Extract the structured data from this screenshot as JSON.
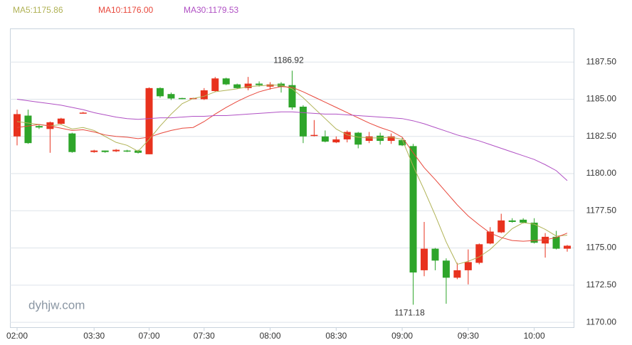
{
  "chart_data": {
    "type": "candlestick",
    "watermark": "dyhjw.com",
    "categories": [
      "02:00",
      null,
      null,
      null,
      null,
      null,
      null,
      "03:30",
      null,
      null,
      null,
      null,
      "07:00",
      null,
      null,
      null,
      null,
      "07:30",
      null,
      null,
      null,
      null,
      null,
      "08:00",
      null,
      null,
      null,
      null,
      null,
      "08:30",
      null,
      null,
      null,
      null,
      null,
      "09:00",
      null,
      null,
      null,
      null,
      null,
      "09:30",
      null,
      null,
      null,
      null,
      null,
      "10:00",
      null,
      null,
      null
    ],
    "open": [
      1182.5,
      1183.9,
      1183.2,
      1183.0,
      1183.35,
      1182.7,
      1184.1,
      1181.45,
      1181.55,
      1181.5,
      1181.55,
      1181.55,
      1181.3,
      1185.75,
      1185.35,
      1185.08,
      1185.03,
      1185.0,
      1185.55,
      1186.4,
      1186.0,
      1185.75,
      1186.05,
      1185.85,
      1186.05,
      1185.95,
      1184.5,
      1182.55,
      1182.5,
      1182.1,
      1182.3,
      1182.75,
      1182.2,
      1182.55,
      1182.2,
      1182.25,
      1181.85,
      1173.5,
      1174.95,
      1174.15,
      1173.0,
      1173.5,
      1174.0,
      1175.3,
      1176.05,
      1176.85,
      1176.9,
      1176.7,
      1175.3,
      1175.75,
      1174.95
    ],
    "high": [
      1184.3,
      1184.3,
      1183.3,
      1183.5,
      1183.75,
      1182.75,
      1184.15,
      1181.6,
      1181.55,
      1181.65,
      1181.6,
      1181.6,
      1185.8,
      1185.8,
      1185.45,
      1185.1,
      1185.1,
      1185.75,
      1186.5,
      1186.45,
      1186.05,
      1186.5,
      1186.2,
      1186.15,
      1186.15,
      1186.92,
      1184.6,
      1183.6,
      1182.9,
      1182.5,
      1182.9,
      1182.8,
      1182.8,
      1182.75,
      1182.7,
      1182.4,
      1182.0,
      1176.75,
      1175.0,
      1174.3,
      1174.0,
      1174.9,
      1175.3,
      1176.4,
      1177.3,
      1177.0,
      1177.0,
      1177.0,
      1176.0,
      1176.15,
      1175.2
    ],
    "low": [
      1181.9,
      1182.0,
      1183.0,
      1181.4,
      1183.3,
      1181.4,
      1184.05,
      1181.4,
      1181.4,
      1181.45,
      1181.45,
      1181.35,
      1181.3,
      1185.1,
      1184.95,
      1185.0,
      1185.0,
      1184.95,
      1185.5,
      1185.95,
      1185.7,
      1185.6,
      1185.85,
      1185.65,
      1185.45,
      1184.3,
      1182.05,
      1182.5,
      1182.1,
      1182.05,
      1182.1,
      1181.7,
      1182.05,
      1181.95,
      1182.0,
      1181.85,
      1171.18,
      1173.1,
      1173.5,
      1171.25,
      1172.9,
      1172.55,
      1173.9,
      1175.25,
      1176.0,
      1176.7,
      1176.65,
      1175.3,
      1174.35,
      1174.9,
      1174.75
    ],
    "close": [
      1184.0,
      1182.05,
      1183.1,
      1183.45,
      1183.7,
      1181.45,
      1184.1,
      1181.55,
      1181.45,
      1181.6,
      1181.5,
      1181.4,
      1185.75,
      1185.2,
      1185.05,
      1185.03,
      1185.08,
      1185.6,
      1186.4,
      1186.0,
      1185.75,
      1186.05,
      1185.95,
      1186.0,
      1185.85,
      1184.45,
      1182.5,
      1182.6,
      1182.15,
      1182.3,
      1182.8,
      1181.95,
      1182.5,
      1182.2,
      1182.5,
      1181.9,
      1173.35,
      1174.95,
      1174.15,
      1173.0,
      1173.5,
      1174.05,
      1175.25,
      1176.1,
      1176.85,
      1176.75,
      1176.7,
      1175.35,
      1175.75,
      1174.95,
      1175.15
    ],
    "up_color": "#e8321e",
    "down_color": "#2ea52a",
    "annotations": [
      1186.92,
      1171.18
    ],
    "series": [
      {
        "name": "MA5:1175.86",
        "color": "#b0b255",
        "values": [
          1183.5,
          1183.4,
          1183.3,
          1183.2,
          1183.3,
          1183.0,
          1183.1,
          1182.9,
          1182.5,
          1182.1,
          1181.9,
          1181.5,
          1182.3,
          1183.2,
          1184.0,
          1184.7,
          1185.05,
          1185.2,
          1185.5,
          1185.6,
          1185.7,
          1185.85,
          1185.9,
          1185.95,
          1185.95,
          1185.7,
          1185.1,
          1184.4,
          1183.7,
          1183.0,
          1182.6,
          1182.45,
          1182.4,
          1182.4,
          1182.45,
          1182.3,
          1180.5,
          1178.9,
          1177.2,
          1175.4,
          1173.9,
          1174.1,
          1174.4,
          1174.9,
          1175.6,
          1176.3,
          1176.7,
          1176.6,
          1176.25,
          1175.8,
          1175.86
        ]
      },
      {
        "name": "MA10:1176.00",
        "color": "#e8473b",
        "values": [
          1183.1,
          1183.2,
          1183.3,
          1183.2,
          1183.05,
          1182.9,
          1182.95,
          1182.8,
          1182.6,
          1182.5,
          1182.45,
          1182.35,
          1182.45,
          1182.7,
          1182.9,
          1183.05,
          1183.1,
          1183.5,
          1184.0,
          1184.45,
          1184.85,
          1185.2,
          1185.5,
          1185.7,
          1185.85,
          1185.8,
          1185.5,
          1185.15,
          1184.8,
          1184.45,
          1184.1,
          1183.75,
          1183.4,
          1183.1,
          1182.85,
          1182.45,
          1181.4,
          1180.4,
          1179.6,
          1178.75,
          1177.9,
          1177.15,
          1176.55,
          1176.0,
          1175.7,
          1175.5,
          1175.45,
          1175.5,
          1175.55,
          1175.7,
          1176.0
        ]
      },
      {
        "name": "MA30:1179.53",
        "color": "#b050c4",
        "values": [
          1185.0,
          1184.9,
          1184.8,
          1184.7,
          1184.6,
          1184.45,
          1184.3,
          1184.1,
          1183.95,
          1183.8,
          1183.7,
          1183.65,
          1183.7,
          1183.75,
          1183.75,
          1183.8,
          1183.85,
          1183.85,
          1183.9,
          1183.9,
          1183.95,
          1184.0,
          1184.05,
          1184.1,
          1184.15,
          1184.15,
          1184.1,
          1184.05,
          1184.0,
          1184.0,
          1183.95,
          1183.9,
          1183.85,
          1183.8,
          1183.75,
          1183.7,
          1183.55,
          1183.35,
          1183.1,
          1182.85,
          1182.6,
          1182.4,
          1182.2,
          1181.95,
          1181.7,
          1181.45,
          1181.2,
          1180.95,
          1180.6,
          1180.2,
          1179.53
        ]
      }
    ],
    "ylim": [
      1169.67,
      1189.76
    ],
    "yticks": [
      {
        "value": 1170,
        "label": "1170.00"
      },
      {
        "value": 1172.5,
        "label": "1172.50"
      },
      {
        "value": 1175,
        "label": "1175.00"
      },
      {
        "value": 1177.5,
        "label": "1177.50"
      },
      {
        "value": 1180,
        "label": "1180.00"
      },
      {
        "value": 1182.5,
        "label": "1182.50"
      },
      {
        "value": 1185,
        "label": "1185.00"
      },
      {
        "value": 1187.5,
        "label": "1187.50"
      }
    ],
    "grid": true
  }
}
